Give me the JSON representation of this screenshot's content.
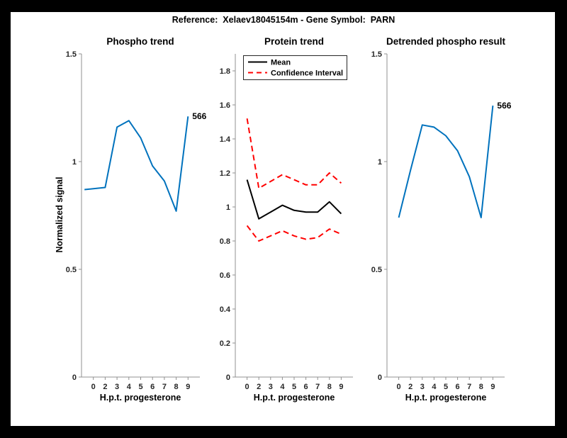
{
  "figure": {
    "title": "Reference:  Xelaev18045154m - Gene Symbol:  PARN",
    "frame_color": "#000000",
    "background_color": "#ffffff"
  },
  "colors": {
    "blue": "#0072BD",
    "red": "#FF0000",
    "black": "#000000",
    "axis": "#909090",
    "tick_text": "#262626"
  },
  "chart_data": [
    {
      "type": "line",
      "title": "Phospho trend",
      "xlabel": "H.p.t. progesterone",
      "ylabel": "Normalized signal",
      "xlim": [
        0,
        10
      ],
      "ylim": [
        0,
        1.5
      ],
      "grid": false,
      "xticks": {
        "positions": [
          1,
          2,
          3,
          4,
          5,
          6,
          7,
          8,
          9
        ],
        "labels": [
          "0",
          "2",
          "3",
          "4",
          "5",
          "6",
          "7",
          "8",
          "9"
        ]
      },
      "yticks": {
        "positions": [
          0,
          0.5,
          1,
          1.5
        ],
        "labels": [
          "0",
          "0.5",
          "1",
          "1.5"
        ]
      },
      "series": [
        {
          "name": "phospho-signal",
          "color": "blue",
          "style": "solid",
          "width": 2,
          "x": [
            0.25,
            2,
            3,
            4,
            5,
            6,
            7,
            8,
            9
          ],
          "y": [
            0.87,
            0.88,
            1.16,
            1.19,
            1.11,
            0.98,
            0.91,
            0.77,
            1.21
          ]
        }
      ],
      "annotation": {
        "text": "566",
        "x": 9,
        "y": 1.21
      },
      "legend": null
    },
    {
      "type": "line",
      "title": "Protein trend",
      "xlabel": "H.p.t. progesterone",
      "ylabel": "",
      "xlim": [
        0,
        10
      ],
      "ylim": [
        0,
        1.9
      ],
      "grid": false,
      "xticks": {
        "positions": [
          1,
          2,
          3,
          4,
          5,
          6,
          7,
          8,
          9
        ],
        "labels": [
          "0",
          "2",
          "3",
          "4",
          "5",
          "6",
          "7",
          "8",
          "9"
        ]
      },
      "yticks": {
        "positions": [
          0,
          0.2,
          0.4,
          0.6,
          0.8,
          1,
          1.2,
          1.4,
          1.6,
          1.8
        ],
        "labels": [
          "0",
          "0.2",
          "0.4",
          "0.6",
          "0.8",
          "1",
          "1.2",
          "1.4",
          "1.6",
          "1.8"
        ]
      },
      "series": [
        {
          "name": "mean",
          "color": "black",
          "style": "solid",
          "width": 2,
          "x": [
            1,
            2,
            3,
            4,
            5,
            6,
            7,
            8,
            9
          ],
          "y": [
            1.16,
            0.93,
            0.97,
            1.01,
            0.98,
            0.97,
            0.97,
            1.03,
            0.96
          ]
        },
        {
          "name": "ci-upper",
          "color": "red",
          "style": "dashed",
          "width": 2,
          "x": [
            1,
            2,
            3,
            4,
            5,
            6,
            7,
            8,
            9
          ],
          "y": [
            1.52,
            1.11,
            1.15,
            1.19,
            1.16,
            1.13,
            1.13,
            1.2,
            1.14
          ]
        },
        {
          "name": "ci-lower",
          "color": "red",
          "style": "dashed",
          "width": 2,
          "x": [
            1,
            2,
            3,
            4,
            5,
            6,
            7,
            8,
            9
          ],
          "y": [
            0.89,
            0.8,
            0.83,
            0.86,
            0.83,
            0.81,
            0.82,
            0.87,
            0.84
          ]
        }
      ],
      "annotation": null,
      "legend": {
        "position": "northwest",
        "entries": [
          {
            "label": "Mean",
            "color": "black",
            "style": "solid"
          },
          {
            "label": "Confidence Interval",
            "color": "red",
            "style": "dashed"
          }
        ]
      }
    },
    {
      "type": "line",
      "title": "Detrended phospho result",
      "xlabel": "H.p.t. progesterone",
      "ylabel": "",
      "xlim": [
        0,
        10
      ],
      "ylim": [
        0,
        1.5
      ],
      "grid": false,
      "xticks": {
        "positions": [
          1,
          2,
          3,
          4,
          5,
          6,
          7,
          8,
          9
        ],
        "labels": [
          "0",
          "2",
          "3",
          "4",
          "5",
          "6",
          "7",
          "8",
          "9"
        ]
      },
      "yticks": {
        "positions": [
          0,
          0.5,
          1,
          1.5
        ],
        "labels": [
          "0",
          "0.5",
          "1",
          "1.5"
        ]
      },
      "series": [
        {
          "name": "detrended-phospho-signal",
          "color": "blue",
          "style": "solid",
          "width": 2,
          "x": [
            1,
            2,
            3,
            4,
            5,
            6,
            7,
            8,
            9
          ],
          "y": [
            0.74,
            0.96,
            1.17,
            1.16,
            1.12,
            1.05,
            0.93,
            0.74,
            1.26
          ]
        }
      ],
      "annotation": {
        "text": "566",
        "x": 9,
        "y": 1.26
      },
      "legend": null
    }
  ]
}
